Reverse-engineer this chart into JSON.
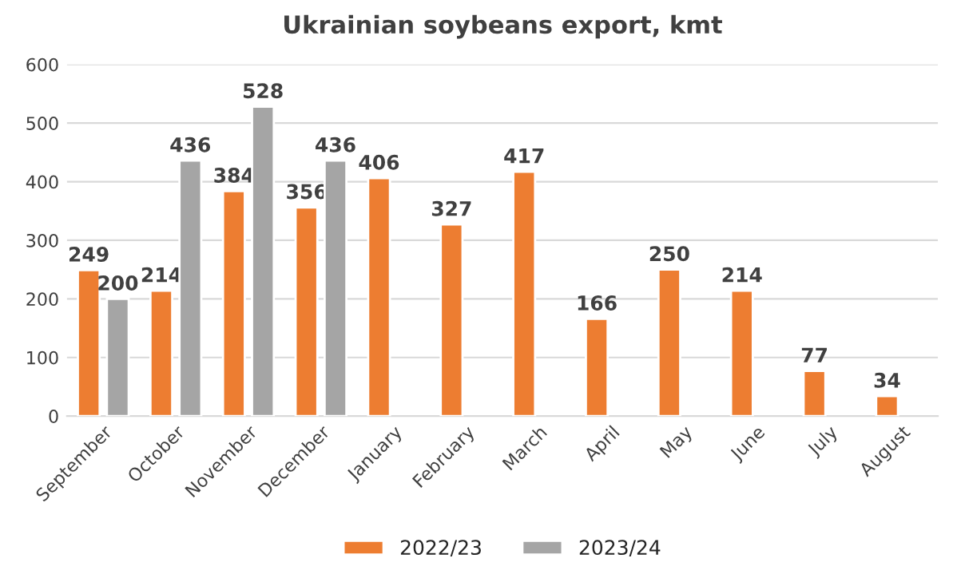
{
  "chart_data": {
    "type": "bar",
    "title": "Ukrainian soybeans export, kmt",
    "categories": [
      "September",
      "October",
      "November",
      "December",
      "January",
      "February",
      "March",
      "April",
      "May",
      "June",
      "July",
      "August"
    ],
    "series": [
      {
        "name": "2022/23",
        "color": "#ed7d31",
        "values": [
          249,
          214,
          384,
          356,
          406,
          327,
          417,
          166,
          250,
          214,
          77,
          34
        ]
      },
      {
        "name": "2023/24",
        "color": "#a5a5a5",
        "values": [
          200,
          436,
          528,
          436,
          null,
          null,
          null,
          null,
          null,
          null,
          null,
          null
        ]
      }
    ],
    "ylim": [
      0,
      600
    ],
    "yticks": [
      0,
      100,
      200,
      300,
      400,
      500,
      600
    ],
    "grid": "y",
    "legend": "bottom",
    "data_labels": true
  }
}
